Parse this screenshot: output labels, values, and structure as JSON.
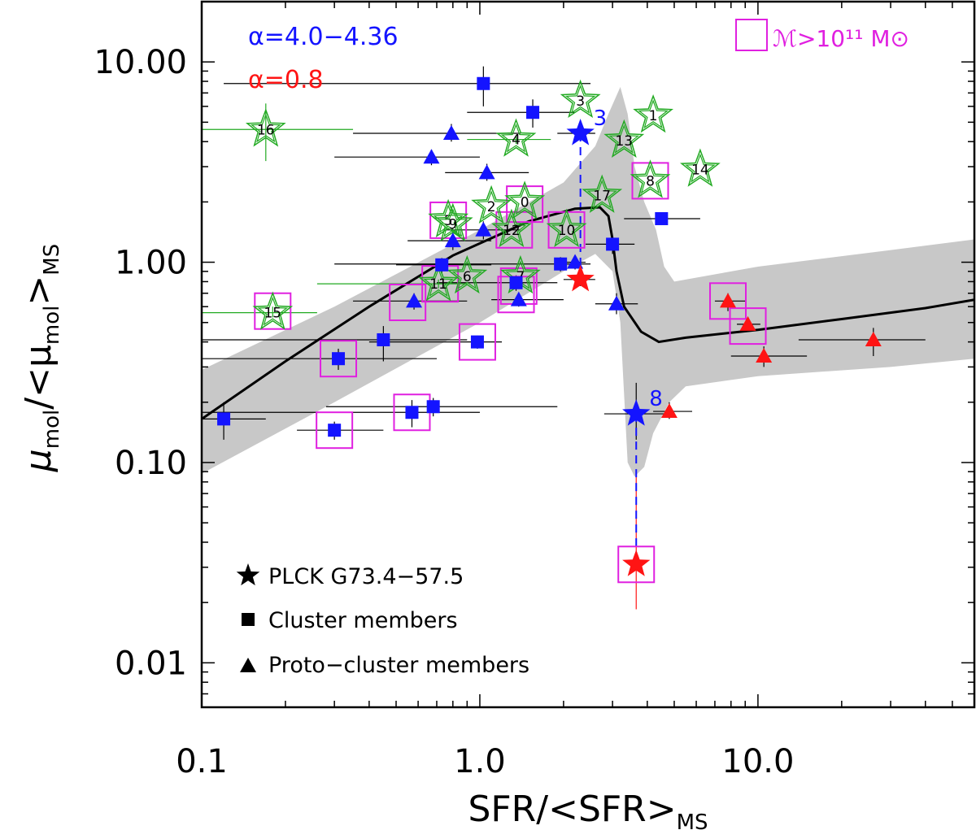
{
  "chart_data": {
    "type": "scatter",
    "xlabel": "SFR/<SFR>",
    "xlabel_sub": "MS",
    "ylabel_main": "μ",
    "ylabel_sub1": "mol",
    "ylabel_mid": "/<μ",
    "ylabel_sub2": "mol",
    "ylabel_end": ">",
    "ylabel_sub3": "MS",
    "xscale": "log",
    "yscale": "log",
    "xlim": [
      0.1,
      60
    ],
    "ylim": [
      0.006,
      20
    ],
    "x_ticks": [
      {
        "v": 0.1,
        "label": "0.1"
      },
      {
        "v": 1.0,
        "label": "1.0"
      },
      {
        "v": 10.0,
        "label": "10.0"
      }
    ],
    "y_ticks": [
      {
        "v": 10,
        "label": "10.00"
      },
      {
        "v": 1,
        "label": "1.00"
      },
      {
        "v": 0.1,
        "label": "0.10"
      },
      {
        "v": 0.01,
        "label": "0.01"
      }
    ],
    "alpha_blue": "α=4.0−4.36",
    "alpha_red": "α=0.8",
    "mass_legend": "ℳ>10¹¹ M⊙",
    "legend": [
      {
        "symbol": "star",
        "text": "PLCK G73.4−57.5"
      },
      {
        "symbol": "square",
        "text": "Cluster members"
      },
      {
        "symbol": "triangle",
        "text": "Proto−cluster members"
      }
    ],
    "colors": {
      "blue": "#1414ff",
      "red": "#ff1414",
      "green": "#22aa22",
      "magenta": "#e020e0",
      "band": "#c8c8c8"
    },
    "model_line": [
      [
        0.1,
        0.165
      ],
      [
        0.2,
        0.32
      ],
      [
        0.4,
        0.6
      ],
      [
        0.8,
        1.08
      ],
      [
        1.5,
        1.6
      ],
      [
        2.2,
        1.85
      ],
      [
        2.7,
        1.88
      ],
      [
        2.9,
        1.7
      ],
      [
        3.0,
        1.3
      ],
      [
        3.1,
        0.9
      ],
      [
        3.3,
        0.6
      ],
      [
        3.8,
        0.45
      ],
      [
        4.4,
        0.4
      ],
      [
        5.5,
        0.42
      ],
      [
        10,
        0.46
      ],
      [
        20,
        0.52
      ],
      [
        40,
        0.59
      ],
      [
        60,
        0.65
      ]
    ],
    "band_upper": [
      [
        0.1,
        0.29
      ],
      [
        0.3,
        0.6
      ],
      [
        1.0,
        1.45
      ],
      [
        2.0,
        2.5
      ],
      [
        2.6,
        3.8
      ],
      [
        2.9,
        5.5
      ],
      [
        3.2,
        7.5
      ],
      [
        3.4,
        5.5
      ],
      [
        3.6,
        3.0
      ],
      [
        3.9,
        2.0
      ],
      [
        4.3,
        1.45
      ],
      [
        4.6,
        0.95
      ],
      [
        5.0,
        0.8
      ],
      [
        10,
        0.95
      ],
      [
        30,
        1.15
      ],
      [
        60,
        1.3
      ]
    ],
    "band_lower": [
      [
        60,
        0.33
      ],
      [
        30,
        0.3
      ],
      [
        10,
        0.27
      ],
      [
        5.5,
        0.24
      ],
      [
        4.8,
        0.2
      ],
      [
        4.2,
        0.14
      ],
      [
        3.9,
        0.095
      ],
      [
        3.6,
        0.085
      ],
      [
        3.4,
        0.1
      ],
      [
        3.2,
        0.5
      ],
      [
        3.0,
        0.9
      ],
      [
        2.6,
        1.1
      ],
      [
        2.0,
        0.9
      ],
      [
        1.0,
        0.5
      ],
      [
        0.3,
        0.2
      ],
      [
        0.1,
        0.088
      ]
    ],
    "blue_squares": [
      {
        "x": 1.03,
        "y": 7.8
      },
      {
        "x": 1.55,
        "y": 5.6
      },
      {
        "x": 4.5,
        "y": 1.65
      },
      {
        "x": 3.0,
        "y": 1.23
      },
      {
        "x": 1.95,
        "y": 0.98
      },
      {
        "x": 0.73,
        "y": 0.97
      },
      {
        "x": 1.35,
        "y": 0.79
      },
      {
        "x": 0.45,
        "y": 0.41
      },
      {
        "x": 0.31,
        "y": 0.33
      },
      {
        "x": 0.12,
        "y": 0.165
      },
      {
        "x": 0.3,
        "y": 0.145
      },
      {
        "x": 0.57,
        "y": 0.178
      },
      {
        "x": 0.68,
        "y": 0.19
      },
      {
        "x": 0.98,
        "y": 0.4
      }
    ],
    "blue_triangles": [
      {
        "x": 0.79,
        "y": 4.4
      },
      {
        "x": 0.67,
        "y": 3.35
      },
      {
        "x": 1.06,
        "y": 2.8
      },
      {
        "x": 1.03,
        "y": 1.45
      },
      {
        "x": 0.8,
        "y": 1.28
      },
      {
        "x": 2.2,
        "y": 1.0
      },
      {
        "x": 1.38,
        "y": 0.65
      },
      {
        "x": 0.58,
        "y": 0.64
      },
      {
        "x": 3.1,
        "y": 0.62
      }
    ],
    "red_triangles": [
      {
        "x": 4.8,
        "y": 0.18
      },
      {
        "x": 7.8,
        "y": 0.64
      },
      {
        "x": 9.2,
        "y": 0.49
      },
      {
        "x": 10.5,
        "y": 0.34
      },
      {
        "x": 26,
        "y": 0.41
      }
    ],
    "stars": [
      {
        "x": 2.3,
        "y": 4.4,
        "color": "blue",
        "label": "3"
      },
      {
        "x": 3.65,
        "y": 0.175,
        "color": "blue",
        "label": "8"
      },
      {
        "x": 2.3,
        "y": 0.82,
        "color": "red",
        "label": ""
      },
      {
        "x": 3.65,
        "y": 0.031,
        "color": "red",
        "label": ""
      }
    ],
    "green_stars": [
      {
        "x": 2.3,
        "y": 6.4,
        "label": "3"
      },
      {
        "x": 4.2,
        "y": 5.4,
        "label": "1"
      },
      {
        "x": 0.17,
        "y": 4.6,
        "label": "16"
      },
      {
        "x": 1.35,
        "y": 4.1,
        "label": "4"
      },
      {
        "x": 3.3,
        "y": 4.05,
        "label": "13"
      },
      {
        "x": 6.2,
        "y": 2.9,
        "label": "14"
      },
      {
        "x": 4.1,
        "y": 2.55,
        "label": "8"
      },
      {
        "x": 2.75,
        "y": 2.15,
        "label": "17"
      },
      {
        "x": 1.45,
        "y": 2.0,
        "label": "0"
      },
      {
        "x": 1.1,
        "y": 1.9,
        "label": "2"
      },
      {
        "x": 0.77,
        "y": 1.62,
        "label": "5"
      },
      {
        "x": 0.8,
        "y": 1.55,
        "label": "9"
      },
      {
        "x": 1.3,
        "y": 1.45,
        "label": "12"
      },
      {
        "x": 2.05,
        "y": 1.45,
        "label": "10"
      },
      {
        "x": 0.9,
        "y": 0.85,
        "label": "6"
      },
      {
        "x": 1.4,
        "y": 0.85,
        "label": "7"
      },
      {
        "x": 0.71,
        "y": 0.78,
        "label": "11"
      },
      {
        "x": 0.18,
        "y": 0.56,
        "label": "15"
      }
    ],
    "magenta_boxes": [
      {
        "x": 0.18,
        "y": 0.57
      },
      {
        "x": 0.31,
        "y": 0.33
      },
      {
        "x": 0.3,
        "y": 0.145
      },
      {
        "x": 0.57,
        "y": 0.178
      },
      {
        "x": 0.55,
        "y": 0.63
      },
      {
        "x": 0.72,
        "y": 0.78
      },
      {
        "x": 0.98,
        "y": 0.4
      },
      {
        "x": 1.38,
        "y": 0.76
      },
      {
        "x": 1.35,
        "y": 0.69
      },
      {
        "x": 1.33,
        "y": 1.45
      },
      {
        "x": 2.05,
        "y": 1.45
      },
      {
        "x": 1.45,
        "y": 1.95
      },
      {
        "x": 0.77,
        "y": 1.62
      },
      {
        "x": 4.1,
        "y": 2.55
      },
      {
        "x": 7.8,
        "y": 0.64
      },
      {
        "x": 9.2,
        "y": 0.48
      },
      {
        "x": 3.65,
        "y": 0.031
      }
    ],
    "error_bars": [
      {
        "x": 1.03,
        "y": 7.8,
        "xlo": 0.12,
        "xhi": 2.5,
        "ylo": 6.0,
        "yhi": 9.5
      },
      {
        "x": 1.55,
        "y": 5.6,
        "xlo": 0.9,
        "xhi": 2.2,
        "ylo": 4.7,
        "yhi": 6.5
      },
      {
        "x": 4.5,
        "y": 1.65,
        "xlo": 3.3,
        "xhi": 6.2,
        "ylo": 1.55,
        "yhi": 1.75
      },
      {
        "x": 3.0,
        "y": 1.23,
        "xlo": 2.4,
        "xhi": 3.6,
        "ylo": 1.1,
        "yhi": 1.35
      },
      {
        "x": 1.95,
        "y": 0.98,
        "xlo": 0.3,
        "xhi": 2.5,
        "ylo": 0.9,
        "yhi": 1.06
      },
      {
        "x": 0.73,
        "y": 0.97,
        "xlo": 0.5,
        "xhi": 1.1,
        "ylo": 0.88,
        "yhi": 1.05
      },
      {
        "x": 1.35,
        "y": 0.79,
        "xlo": 0.7,
        "xhi": 1.9,
        "ylo": 0.72,
        "yhi": 0.86
      },
      {
        "x": 0.45,
        "y": 0.41,
        "xlo": 0.1,
        "xhi": 0.9,
        "ylo": 0.32,
        "yhi": 0.48
      },
      {
        "x": 0.31,
        "y": 0.33,
        "xlo": 0.1,
        "xhi": 0.7,
        "ylo": 0.29,
        "yhi": 0.37
      },
      {
        "x": 0.12,
        "y": 0.165,
        "xlo": 0.1,
        "xhi": 0.17,
        "ylo": 0.13,
        "yhi": 0.2
      },
      {
        "x": 0.3,
        "y": 0.145,
        "xlo": 0.22,
        "xhi": 0.45,
        "ylo": 0.13,
        "yhi": 0.16
      },
      {
        "x": 0.57,
        "y": 0.178,
        "xlo": 0.1,
        "xhi": 1.0,
        "ylo": 0.15,
        "yhi": 0.205
      },
      {
        "x": 0.68,
        "y": 0.19,
        "xlo": 0.28,
        "xhi": 1.9,
        "ylo": 0.17,
        "yhi": 0.21
      },
      {
        "x": 0.98,
        "y": 0.4,
        "xlo": 0.4,
        "xhi": 1.2,
        "ylo": 0.37,
        "yhi": 0.43
      },
      {
        "x": 0.79,
        "y": 4.4,
        "xlo": 0.35,
        "xhi": 1.4,
        "ylo": 4.0,
        "yhi": 4.9
      },
      {
        "x": 0.67,
        "y": 3.35,
        "xlo": 0.3,
        "xhi": 1.0,
        "ylo": 3.05,
        "yhi": 3.65
      },
      {
        "x": 1.06,
        "y": 2.8,
        "xlo": 0.75,
        "xhi": 1.5,
        "ylo": 2.55,
        "yhi": 3.1
      },
      {
        "x": 1.03,
        "y": 1.45,
        "xlo": 0.75,
        "xhi": 1.4,
        "ylo": 1.3,
        "yhi": 1.6
      },
      {
        "x": 0.8,
        "y": 1.28,
        "xlo": 0.55,
        "xhi": 1.1,
        "ylo": 1.15,
        "yhi": 1.4
      },
      {
        "x": 2.2,
        "y": 1.0,
        "xlo": 2.0,
        "xhi": 2.4,
        "ylo": 0.92,
        "yhi": 1.08
      },
      {
        "x": 1.38,
        "y": 0.65,
        "xlo": 1.1,
        "xhi": 2.0,
        "ylo": 0.6,
        "yhi": 0.7
      },
      {
        "x": 0.58,
        "y": 0.64,
        "xlo": 0.35,
        "xhi": 0.9,
        "ylo": 0.58,
        "yhi": 0.7
      },
      {
        "x": 3.1,
        "y": 0.62,
        "xlo": 2.6,
        "xhi": 3.7,
        "ylo": 0.55,
        "yhi": 0.7
      },
      {
        "x": 4.8,
        "y": 0.18,
        "xlo": 4.2,
        "xhi": 5.8,
        "ylo": 0.165,
        "yhi": 0.2
      },
      {
        "x": 7.8,
        "y": 0.64,
        "xlo": 7.0,
        "xhi": 9.0,
        "ylo": 0.57,
        "yhi": 0.7
      },
      {
        "x": 9.2,
        "y": 0.49,
        "xlo": 8.4,
        "xhi": 10.2,
        "ylo": 0.45,
        "yhi": 0.53
      },
      {
        "x": 10.5,
        "y": 0.34,
        "xlo": 8.0,
        "xhi": 15,
        "ylo": 0.3,
        "yhi": 0.38
      },
      {
        "x": 26,
        "y": 0.41,
        "xlo": 14,
        "xhi": 40,
        "ylo": 0.34,
        "yhi": 0.47
      },
      {
        "x": 2.3,
        "y": 4.4,
        "xlo": 1.9,
        "xhi": 2.6,
        "ylo": 4.2,
        "yhi": 4.6
      },
      {
        "x": 3.65,
        "y": 0.175,
        "xlo": 2.8,
        "xhi": 4.8,
        "ylo": 0.13,
        "yhi": 0.25
      },
      {
        "x": 2.3,
        "y": 0.82,
        "xlo": 2.0,
        "xhi": 2.6,
        "ylo": 0.76,
        "yhi": 0.9
      }
    ],
    "green_error_bars": [
      {
        "x": 0.17,
        "y": 4.6,
        "xlo": 0.1,
        "xhi": 0.35,
        "ylo": 3.2,
        "yhi": 6.2
      },
      {
        "x": 0.18,
        "y": 0.56,
        "xlo": 0.1,
        "xhi": 0.26,
        "ylo": 0.53,
        "yhi": 0.6
      },
      {
        "x": 0.71,
        "y": 0.78,
        "xlo": 0.26,
        "xhi": 0.9,
        "ylo": 0.74,
        "yhi": 0.82
      },
      {
        "x": 1.35,
        "y": 4.1,
        "xlo": 0.9,
        "xhi": 1.8,
        "ylo": 3.9,
        "yhi": 4.3
      }
    ],
    "red_errs": [
      {
        "x": 3.65,
        "y": 0.031,
        "xlo": 3.65,
        "xhi": 3.65,
        "ylo": 0.0185,
        "yhi": 0.09
      }
    ],
    "dashed_links": [
      {
        "x": 2.3,
        "y1": 4.4,
        "y2": 0.82
      },
      {
        "x": 3.65,
        "y1": 0.175,
        "y2": 0.031
      }
    ]
  }
}
